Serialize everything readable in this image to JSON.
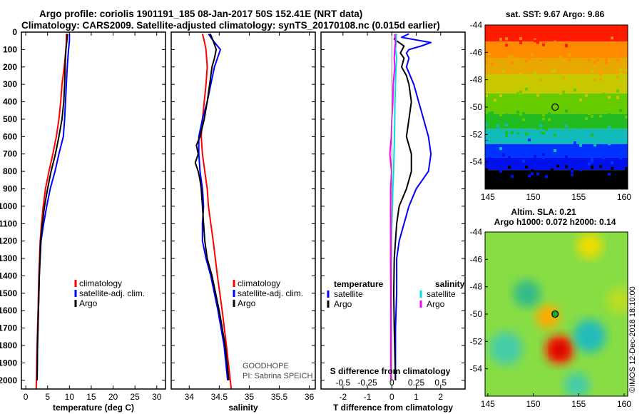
{
  "header": {
    "title_line1": "Argo profile: coriolis 1901191_185 08-Jan-2017 50S 152.41E (NRT data)",
    "title_line2": "Climatology: CARS2009. Satellite-adjusted climatology: synTS_20170108.nc (0.015d earlier)"
  },
  "colors": {
    "climatology": "#ff0000",
    "satellite": "#0000ff",
    "argo": "#000000",
    "satellite_salinity": "#00e0e0",
    "argo_salinity": "#ff00ff"
  },
  "depth_axis": {
    "ticks": [
      "0",
      "100",
      "200",
      "300",
      "400",
      "500",
      "600",
      "700",
      "800",
      "900",
      "1000",
      "1100",
      "1200",
      "1300",
      "1400",
      "1500",
      "1600",
      "1700",
      "1800",
      "1900",
      "2000"
    ],
    "range": [
      0,
      2050
    ],
    "direction": "down"
  },
  "chart_data": [
    {
      "type": "line",
      "name": "temperature-panel",
      "xlabel": "temperature (deg C)",
      "xlim": [
        -1,
        32
      ],
      "xticks": [
        "0",
        "5",
        "10",
        "15",
        "20",
        "25",
        "30"
      ],
      "xtick_values": [
        0,
        5,
        10,
        15,
        20,
        25,
        30
      ],
      "legend": {
        "position": "bottom-right",
        "entries": [
          "climatology",
          "satellite-adj. clim.",
          "Argo"
        ]
      },
      "series": [
        {
          "name": "climatology",
          "color": "#ff0000",
          "depth": [
            10,
            50,
            100,
            200,
            300,
            400,
            500,
            600,
            700,
            800,
            900,
            1000,
            1100,
            1200,
            1400,
            1600,
            1800,
            2050
          ],
          "values": [
            9.3,
            9.3,
            9.2,
            8.8,
            8.3,
            8.0,
            7.6,
            7.0,
            6.2,
            5.3,
            4.5,
            4.0,
            3.6,
            3.3,
            3.0,
            2.8,
            2.6,
            2.4
          ]
        },
        {
          "name": "satellite-adj. clim.",
          "color": "#0000ff",
          "depth": [
            10,
            50,
            100,
            200,
            300,
            400,
            500,
            600,
            700,
            800,
            900,
            1000,
            1100,
            1200,
            1400,
            1600,
            1800,
            2000
          ],
          "values": [
            10.0,
            10.0,
            9.8,
            9.5,
            9.3,
            9.1,
            8.9,
            8.6,
            7.6,
            6.7,
            5.6,
            4.8,
            4.1,
            3.5,
            3.1,
            2.9,
            2.7,
            2.6
          ]
        },
        {
          "name": "Argo",
          "color": "#000000",
          "depth": [
            10,
            50,
            100,
            200,
            300,
            400,
            500,
            600,
            700,
            800,
            900,
            1000,
            1100,
            1200,
            1400,
            1600,
            1800,
            2000
          ],
          "values": [
            9.5,
            9.4,
            9.2,
            9.0,
            8.9,
            8.7,
            8.3,
            7.6,
            6.8,
            5.8,
            5.0,
            4.3,
            3.8,
            3.4,
            3.1,
            2.9,
            2.7,
            2.6
          ]
        }
      ]
    },
    {
      "type": "line",
      "name": "salinity-panel",
      "xlabel": "salinity",
      "xlim": [
        33.7,
        36.1
      ],
      "xticks": [
        "34",
        "34.5",
        "35",
        "35.5",
        "36"
      ],
      "xtick_values": [
        34,
        34.5,
        35,
        35.5,
        36
      ],
      "legend": {
        "position": "bottom-right",
        "entries": [
          "climatology",
          "satellite-adj. clim.",
          "Argo"
        ]
      },
      "annotation": [
        "GOODHOPE",
        "PI: Sabrina SPEICH"
      ],
      "series": [
        {
          "name": "climatology",
          "color": "#ff0000",
          "depth": [
            10,
            50,
            100,
            200,
            300,
            400,
            500,
            600,
            700,
            800,
            900,
            1000,
            1100,
            1200,
            1400,
            1600,
            1800,
            2050
          ],
          "values": [
            34.22,
            34.25,
            34.28,
            34.3,
            34.28,
            34.25,
            34.22,
            34.2,
            34.22,
            34.26,
            34.3,
            34.32,
            34.36,
            34.4,
            34.47,
            34.55,
            34.62,
            34.7
          ]
        },
        {
          "name": "satellite-adj. clim.",
          "color": "#0000ff",
          "depth": [
            10,
            50,
            100,
            200,
            300,
            400,
            500,
            600,
            700,
            800,
            900,
            1000,
            1100,
            1200,
            1300,
            1400,
            1600,
            1800,
            2000
          ],
          "values": [
            34.32,
            34.4,
            34.52,
            34.42,
            34.36,
            34.3,
            34.22,
            34.16,
            34.16,
            34.18,
            34.22,
            34.24,
            34.22,
            34.22,
            34.28,
            34.36,
            34.48,
            34.58,
            34.64
          ]
        },
        {
          "name": "Argo",
          "color": "#000000",
          "depth": [
            10,
            50,
            100,
            150,
            200,
            300,
            400,
            500,
            600,
            650,
            700,
            750,
            800,
            850,
            900,
            1000,
            1100,
            1200,
            1300,
            1400,
            1600,
            1800,
            2000
          ],
          "values": [
            34.35,
            34.4,
            34.45,
            34.42,
            34.38,
            34.34,
            34.3,
            34.25,
            34.18,
            34.12,
            34.15,
            34.1,
            34.15,
            34.18,
            34.2,
            34.22,
            34.24,
            34.26,
            34.3,
            34.38,
            34.5,
            34.6,
            34.66
          ]
        }
      ]
    },
    {
      "type": "line",
      "name": "difference-panel",
      "xlabel": "T difference from climatology",
      "xlim": [
        -2.9,
        3.0
      ],
      "xticks": [
        "-2",
        "-1",
        "0",
        "1",
        "2"
      ],
      "xtick_values": [
        -2,
        -1,
        0,
        1,
        2
      ],
      "top_axis_label": "S difference from climatology",
      "top_ticks": [
        "-0.5",
        "-0.25",
        "0",
        "0.25",
        "0.5"
      ],
      "legend": {
        "position": "bottom",
        "temperature_title": "temperature",
        "salinity_title": "salinity",
        "entries": [
          "satellite",
          "Argo",
          "satellite",
          "Argo"
        ]
      },
      "series": [
        {
          "name": "temperature satellite",
          "color": "#0000ff",
          "depth": [
            10,
            30,
            60,
            80,
            100,
            120,
            150,
            200,
            300,
            400,
            500,
            600,
            700,
            800,
            900,
            1000,
            1100,
            1200,
            1300,
            1500,
            1700,
            2000
          ],
          "values": [
            0.7,
            0.4,
            1.6,
            1.2,
            0.7,
            0.6,
            0.7,
            0.6,
            0.9,
            1.1,
            1.3,
            1.5,
            1.6,
            1.5,
            1.0,
            0.7,
            0.5,
            0.3,
            0.2,
            0.2,
            0.15,
            0.15
          ]
        },
        {
          "name": "temperature Argo",
          "color": "#000000",
          "depth": [
            10,
            40,
            80,
            120,
            150,
            200,
            250,
            300,
            400,
            500,
            600,
            700,
            800,
            900,
            1000,
            1100,
            1200,
            1300,
            1500,
            1700,
            2000
          ],
          "values": [
            0.2,
            0.1,
            0.5,
            0.35,
            0.5,
            0.4,
            0.6,
            0.7,
            0.8,
            0.7,
            0.6,
            0.8,
            0.8,
            0.6,
            0.3,
            0.2,
            0.15,
            0.1,
            0.08,
            0.1,
            0.15
          ]
        },
        {
          "name": "salinity satellite",
          "color": "#00e0e0",
          "depth": [
            10,
            50,
            100,
            150,
            200,
            300,
            400,
            500,
            600,
            700,
            800,
            900,
            1000,
            1200,
            1400,
            1600,
            1800,
            2000
          ],
          "values": [
            0.18,
            0.18,
            0.15,
            0.2,
            0.17,
            0.15,
            0.13,
            0.12,
            0.11,
            0.09,
            0.07,
            0.04,
            0.02,
            -0.02,
            -0.03,
            -0.03,
            -0.03,
            -0.03
          ]
        },
        {
          "name": "salinity Argo",
          "color": "#ff00ff",
          "depth": [
            10,
            60,
            100,
            150,
            200,
            300,
            400,
            500,
            600,
            700,
            800,
            900,
            1000,
            1100,
            1200,
            1300,
            1500,
            1800,
            2000
          ],
          "values": [
            0.12,
            0.15,
            0.12,
            0.1,
            0.12,
            0.06,
            0.04,
            0.0,
            -0.02,
            -0.08,
            -0.01,
            -0.05,
            -0.05,
            -0.05,
            -0.05,
            -0.05,
            -0.04,
            -0.04,
            -0.04
          ]
        }
      ]
    },
    {
      "type": "heatmap",
      "name": "sst-map",
      "title": "sat. SST: 9.67 Argo: 9.86",
      "xticks": [
        "145",
        "150",
        "155",
        "160"
      ],
      "xtick_values": [
        145,
        150,
        155,
        160
      ],
      "yticks": [
        "-44",
        "-46",
        "-48",
        "-50",
        "-52",
        "-54"
      ],
      "ytick_values": [
        -44,
        -46,
        -48,
        -50,
        -52,
        -54
      ],
      "xlim": [
        144.7,
        160.4
      ],
      "ylim": [
        -56.0,
        -44.0
      ],
      "marker": {
        "lon": 152.41,
        "lat": -50.0
      },
      "bands": [
        {
          "lat_from": -44.0,
          "lat_to": -45.2,
          "color": "#ff1a00"
        },
        {
          "lat_from": -45.2,
          "lat_to": -46.4,
          "color": "#ff8a00"
        },
        {
          "lat_from": -46.4,
          "lat_to": -47.6,
          "color": "#e8a800"
        },
        {
          "lat_from": -47.6,
          "lat_to": -49.0,
          "color": "#c8c800"
        },
        {
          "lat_from": -49.0,
          "lat_to": -50.5,
          "color": "#66cc00"
        },
        {
          "lat_from": -50.5,
          "lat_to": -51.6,
          "color": "#22bb22"
        },
        {
          "lat_from": -51.6,
          "lat_to": -52.7,
          "color": "#11bbbb"
        },
        {
          "lat_from": -52.7,
          "lat_to": -53.7,
          "color": "#0033ff"
        },
        {
          "lat_from": -53.7,
          "lat_to": -54.6,
          "color": "#0011ee"
        },
        {
          "lat_from": -54.6,
          "lat_to": -56.0,
          "color": "#000000"
        }
      ]
    },
    {
      "type": "heatmap",
      "name": "sla-map",
      "title_line1": "Altim. SLA: 0.21",
      "title_line2": "Argo h1000: 0.072 h2000: 0.14",
      "xticks": [
        "145",
        "150",
        "155",
        "160"
      ],
      "xtick_values": [
        145,
        150,
        155,
        160
      ],
      "yticks": [
        "-44",
        "-46",
        "-48",
        "-50",
        "-52",
        "-54"
      ],
      "ytick_values": [
        -44,
        -46,
        -48,
        -50,
        -52,
        -54
      ],
      "xlim": [
        144.7,
        160.4
      ],
      "ylim": [
        -56.0,
        -44.0
      ],
      "marker": {
        "lon": 152.41,
        "lat": -50.0
      },
      "background": "#88dd44",
      "blobs": [
        {
          "lon": 152.9,
          "lat": -52.6,
          "r": 1.6,
          "color": "#ff2200"
        },
        {
          "lon": 152.9,
          "lat": -52.6,
          "r": 0.9,
          "color": "#cc0000"
        },
        {
          "lon": 151.6,
          "lat": -50.2,
          "r": 1.3,
          "color": "#ffaa00"
        },
        {
          "lon": 156.2,
          "lat": -45.0,
          "r": 1.4,
          "color": "#eedd00"
        },
        {
          "lon": 147.0,
          "lat": -52.5,
          "r": 1.8,
          "color": "#44ccaa"
        },
        {
          "lon": 149.3,
          "lat": -48.5,
          "r": 1.5,
          "color": "#33bb88"
        },
        {
          "lon": 156.2,
          "lat": -51.6,
          "r": 1.8,
          "color": "#22bbbb"
        },
        {
          "lon": 154.8,
          "lat": -55.2,
          "r": 1.4,
          "color": "#44ccaa"
        },
        {
          "lon": 159.5,
          "lat": -49.0,
          "r": 1.4,
          "color": "#bbdd22"
        }
      ]
    }
  ],
  "watermark": "©IMOS 12-Dec-2018 18:10:00"
}
